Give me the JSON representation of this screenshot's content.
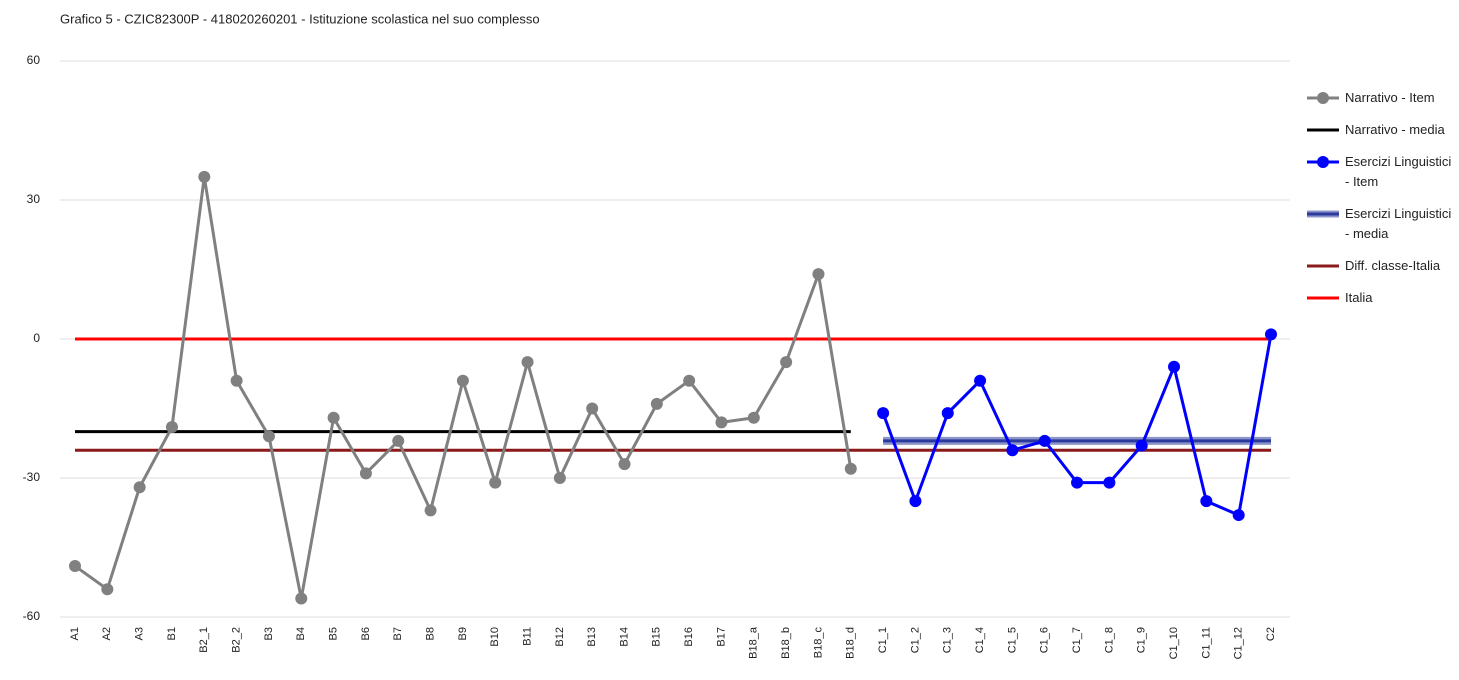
{
  "chart_data": {
    "type": "line",
    "title": "Grafico 5 - CZIC82300P - 418020260201 - Istituzione scolastica nel suo complesso",
    "categories": [
      "A1",
      "A2",
      "A3",
      "B1",
      "B2_1",
      "B2_2",
      "B3",
      "B4",
      "B5",
      "B6",
      "B7",
      "B8",
      "B9",
      "B10",
      "B11",
      "B12",
      "B13",
      "B14",
      "B15",
      "B16",
      "B17",
      "B18_a",
      "B18_b",
      "B18_c",
      "B18_d",
      "C1_1",
      "C1_2",
      "C1_3",
      "C1_4",
      "C1_5",
      "C1_6",
      "C1_7",
      "C1_8",
      "C1_9",
      "C1_10",
      "C1_11",
      "C1_12",
      "C2"
    ],
    "ylim": [
      -60,
      60
    ],
    "yticks": [
      -60,
      -30,
      0,
      30,
      60
    ],
    "grid": true,
    "legend": "right",
    "series": [
      {
        "name": "Narrativo - Item",
        "color": "#808080",
        "markers": true,
        "values": [
          -49,
          -54,
          -32,
          -19,
          35,
          -9,
          -21,
          -56,
          -17,
          -29,
          -22,
          -37,
          -9,
          -31,
          -5,
          -30,
          -15,
          -27,
          -14,
          -9,
          -18,
          -17,
          -5,
          14,
          -28,
          null,
          null,
          null,
          null,
          null,
          null,
          null,
          null,
          null,
          null,
          null,
          null,
          null
        ]
      },
      {
        "name": "Narrativo - media",
        "color": "#000000",
        "markers": false,
        "values": [
          -20,
          -20,
          -20,
          -20,
          -20,
          -20,
          -20,
          -20,
          -20,
          -20,
          -20,
          -20,
          -20,
          -20,
          -20,
          -20,
          -20,
          -20,
          -20,
          -20,
          -20,
          -20,
          -20,
          -20,
          -20,
          null,
          null,
          null,
          null,
          null,
          null,
          null,
          null,
          null,
          null,
          null,
          null,
          null
        ]
      },
      {
        "name": "Esercizi Linguistici - Item",
        "color": "#0000ff",
        "markers": true,
        "values": [
          null,
          null,
          null,
          null,
          null,
          null,
          null,
          null,
          null,
          null,
          null,
          null,
          null,
          null,
          null,
          null,
          null,
          null,
          null,
          null,
          null,
          null,
          null,
          null,
          null,
          -16,
          -35,
          -16,
          -9,
          -24,
          -22,
          -31,
          -31,
          -23,
          -6,
          -35,
          -38,
          1
        ]
      },
      {
        "name": "Esercizi Linguistici - media",
        "color": "#2a3a9e",
        "markers": false,
        "values": [
          null,
          null,
          null,
          null,
          null,
          null,
          null,
          null,
          null,
          null,
          null,
          null,
          null,
          null,
          null,
          null,
          null,
          null,
          null,
          null,
          null,
          null,
          null,
          null,
          null,
          -22,
          -22,
          -22,
          -22,
          -22,
          -22,
          -22,
          -22,
          -22,
          -22,
          -22,
          -22,
          -22
        ]
      },
      {
        "name": "Diff. classe-Italia",
        "color": "#8b1a1a",
        "markers": false,
        "values": [
          -24,
          -24,
          -24,
          -24,
          -24,
          -24,
          -24,
          -24,
          -24,
          -24,
          -24,
          -24,
          -24,
          -24,
          -24,
          -24,
          -24,
          -24,
          -24,
          -24,
          -24,
          -24,
          -24,
          -24,
          -24,
          -24,
          -24,
          -24,
          -24,
          -24,
          -24,
          -24,
          -24,
          -24,
          -24,
          -24,
          -24,
          -24
        ]
      },
      {
        "name": "Italia",
        "color": "#ff0000",
        "markers": false,
        "values": [
          0,
          0,
          0,
          0,
          0,
          0,
          0,
          0,
          0,
          0,
          0,
          0,
          0,
          0,
          0,
          0,
          0,
          0,
          0,
          0,
          0,
          0,
          0,
          0,
          0,
          0,
          0,
          0,
          0,
          0,
          0,
          0,
          0,
          0,
          0,
          0,
          0,
          0
        ]
      }
    ]
  }
}
